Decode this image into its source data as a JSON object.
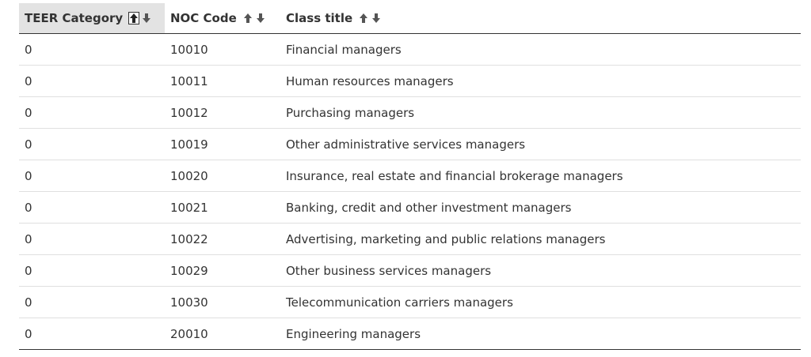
{
  "table": {
    "headers": [
      {
        "label": "TEER Category",
        "sort_up_icon": "arrow-up-icon",
        "sort_down_icon": "arrow-down-icon",
        "sorted": "ascending"
      },
      {
        "label": "NOC Code",
        "sort_up_icon": "arrow-up-icon",
        "sort_down_icon": "arrow-down-icon",
        "sorted": "none"
      },
      {
        "label": "Class title",
        "sort_up_icon": "arrow-up-icon",
        "sort_down_icon": "arrow-down-icon",
        "sorted": "none"
      }
    ],
    "rows": [
      {
        "teer": "0",
        "noc": "10010",
        "title": "Financial managers"
      },
      {
        "teer": "0",
        "noc": "10011",
        "title": "Human resources managers"
      },
      {
        "teer": "0",
        "noc": "10012",
        "title": "Purchasing managers"
      },
      {
        "teer": "0",
        "noc": "10019",
        "title": "Other administrative services managers"
      },
      {
        "teer": "0",
        "noc": "10020",
        "title": "Insurance, real estate and financial brokerage managers"
      },
      {
        "teer": "0",
        "noc": "10021",
        "title": "Banking, credit and other investment managers"
      },
      {
        "teer": "0",
        "noc": "10022",
        "title": "Advertising, marketing and public relations managers"
      },
      {
        "teer": "0",
        "noc": "10029",
        "title": "Other business services managers"
      },
      {
        "teer": "0",
        "noc": "10030",
        "title": "Telecommunication carriers managers"
      },
      {
        "teer": "0",
        "noc": "20010",
        "title": "Engineering managers"
      }
    ]
  },
  "colors": {
    "text": "#333333",
    "header_active_bg": "#e3e3e3",
    "row_divider": "#e0e0e0",
    "table_rule": "#333333"
  }
}
